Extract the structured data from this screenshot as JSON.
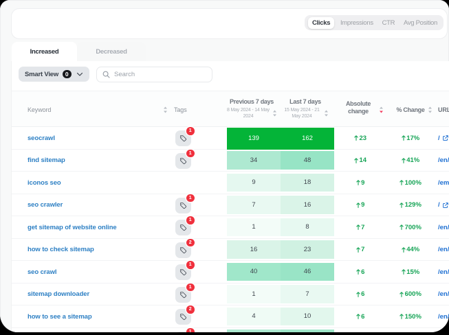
{
  "metric_tabs": {
    "items": [
      {
        "label": "Clicks",
        "active": true
      },
      {
        "label": "Impressions",
        "active": false
      },
      {
        "label": "CTR",
        "active": false
      },
      {
        "label": "Avg Position",
        "active": false
      }
    ]
  },
  "tabs": {
    "increased": {
      "label": "Increased",
      "active": true
    },
    "decreased": {
      "label": "Decreased",
      "active": false
    }
  },
  "filters": {
    "smart_view_label": "Smart View",
    "smart_view_count": "0",
    "search_placeholder": "Search"
  },
  "table": {
    "headers": {
      "keyword": "Keyword",
      "tags": "Tags",
      "previous": {
        "title": "Previous 7 days",
        "dates": "8 May 2024 - 14 May 2024"
      },
      "last": {
        "title": "Last 7 days",
        "dates": "15 May 2024 - 21 May 2024"
      },
      "absolute": "Absolute change",
      "percent": "% Change",
      "url": "URL"
    },
    "sort": {
      "active_column": "absolute",
      "direction": "desc"
    },
    "rows": [
      {
        "keyword": "seocrawl",
        "tags": 1,
        "previous": 139,
        "last": 162,
        "prev_bg": "#04b438",
        "last_bg": "#04b438",
        "max": true,
        "absolute": 23,
        "percent": "17%",
        "url": "/",
        "url_external_icon": true
      },
      {
        "keyword": "find sitemap",
        "tags": 1,
        "previous": 34,
        "last": 48,
        "prev_bg": "#aee9d1",
        "last_bg": "#97e4c5",
        "max": false,
        "absolute": 14,
        "percent": "41%",
        "url": "/en/",
        "url_external_icon": false
      },
      {
        "keyword": "iconos seo",
        "tags": 0,
        "previous": 9,
        "last": 18,
        "prev_bg": "#e5f8f0",
        "last_bg": "#d6f3e6",
        "max": false,
        "absolute": 9,
        "percent": "100%",
        "url": "/em",
        "url_external_icon": false
      },
      {
        "keyword": "seo crawler",
        "tags": 1,
        "previous": 7,
        "last": 16,
        "prev_bg": "#e9f9f2",
        "last_bg": "#daf4e8",
        "max": false,
        "absolute": 9,
        "percent": "129%",
        "url": "/",
        "url_external_icon": true
      },
      {
        "keyword": "get sitemap of website online",
        "tags": 1,
        "previous": 1,
        "last": 8,
        "prev_bg": "#f3fcf8",
        "last_bg": "#e7f9f1",
        "max": false,
        "absolute": 7,
        "percent": "700%",
        "url": "/en/",
        "url_external_icon": false
      },
      {
        "keyword": "how to check sitemap",
        "tags": 2,
        "previous": 16,
        "last": 23,
        "prev_bg": "#daf4e8",
        "last_bg": "#d0f1e2",
        "max": false,
        "absolute": 7,
        "percent": "44%",
        "url": "/en/",
        "url_external_icon": false
      },
      {
        "keyword": "seo crawl",
        "tags": 1,
        "previous": 40,
        "last": 46,
        "prev_bg": "#a0e7ca",
        "last_bg": "#99e4c6",
        "max": false,
        "absolute": 6,
        "percent": "15%",
        "url": "/en/",
        "url_external_icon": false
      },
      {
        "keyword": "sitemap downloader",
        "tags": 1,
        "previous": 1,
        "last": 7,
        "prev_bg": "#f3fcf8",
        "last_bg": "#e9f9f2",
        "max": false,
        "absolute": 6,
        "percent": "600%",
        "url": "/en/",
        "url_external_icon": false
      },
      {
        "keyword": "how to see a sitemap",
        "tags": 2,
        "previous": 4,
        "last": 10,
        "prev_bg": "#effbf5",
        "last_bg": "#e2f7ed",
        "max": false,
        "absolute": 6,
        "percent": "150%",
        "url": "/en/",
        "url_external_icon": false
      },
      {
        "keyword": "",
        "tags": 1,
        "previous": "",
        "last": "",
        "prev_bg": "#ade8d0",
        "last_bg": "#9fe6c9",
        "max": false,
        "absolute": "",
        "percent": "",
        "url": "",
        "url_external_icon": false
      }
    ]
  },
  "colors": {
    "frame": "#000000",
    "page_bg": "#f8f9f9",
    "accent_green": "#04b438",
    "change_green": "#16a456",
    "keyword_blue": "#2e80c4",
    "url_blue": "#1d6fd2",
    "badge_red": "#f0303d",
    "sort_active_red": "#f43b5c"
  }
}
